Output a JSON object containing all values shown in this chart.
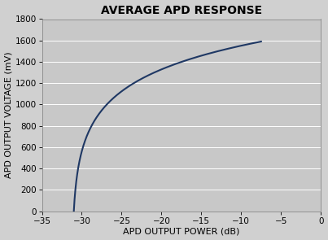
{
  "title": "AVERAGE APD RESPONSE",
  "xlabel": "APD OUTPUT POWER (dB)",
  "ylabel": "APD OUTPUT VOLTAGE (mV)",
  "xlim": [
    -35,
    0
  ],
  "ylim": [
    0,
    1800
  ],
  "xticks": [
    -35,
    -30,
    -25,
    -20,
    -15,
    -10,
    -5,
    0
  ],
  "yticks": [
    0,
    200,
    400,
    600,
    800,
    1000,
    1200,
    1400,
    1600,
    1800
  ],
  "curve_color": "#1F3864",
  "fig_facecolor": "#D0D0D0",
  "plot_facecolor": "#C8C8C8",
  "grid_color": "#BEBEBE",
  "curve_x_start": -31.0,
  "curve_x_end": -7.5,
  "Vmax": 1700.0,
  "log_k": 0.12,
  "title_fontsize": 10,
  "label_fontsize": 8,
  "tick_fontsize": 7.5,
  "linewidth": 1.5
}
